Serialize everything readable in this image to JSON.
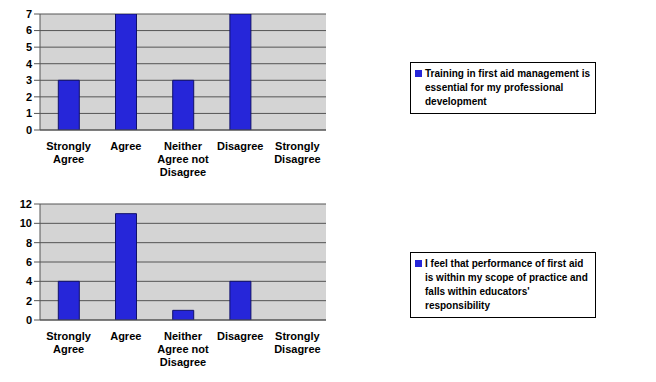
{
  "chart_data": [
    {
      "type": "bar",
      "categories": [
        "Strongly Agree",
        "Agree",
        "Neither Agree not Disagree",
        "Disagree",
        "Strongly Disagree"
      ],
      "series": [
        {
          "name": "Training in first aid management is essential for my professional development",
          "color": "#2626d9",
          "values": [
            3,
            7,
            3,
            7,
            0
          ]
        }
      ],
      "ylim": [
        0,
        7
      ],
      "yticks": [
        0,
        1,
        2,
        3,
        4,
        5,
        6,
        7
      ],
      "grid": true,
      "legend": "right"
    },
    {
      "type": "bar",
      "categories": [
        "Strongly Agree",
        "Agree",
        "Neither Agree not Disagree",
        "Disagree",
        "Strongly Disagree"
      ],
      "series": [
        {
          "name": "I feel that performance of first aid is within my scope of practice and falls within educators' responsibility",
          "color": "#2626d9",
          "values": [
            4,
            11,
            1,
            4,
            0
          ]
        }
      ],
      "ylim": [
        0,
        12
      ],
      "yticks": [
        0,
        2,
        4,
        6,
        8,
        10,
        12
      ],
      "grid": true,
      "legend": "right"
    }
  ]
}
